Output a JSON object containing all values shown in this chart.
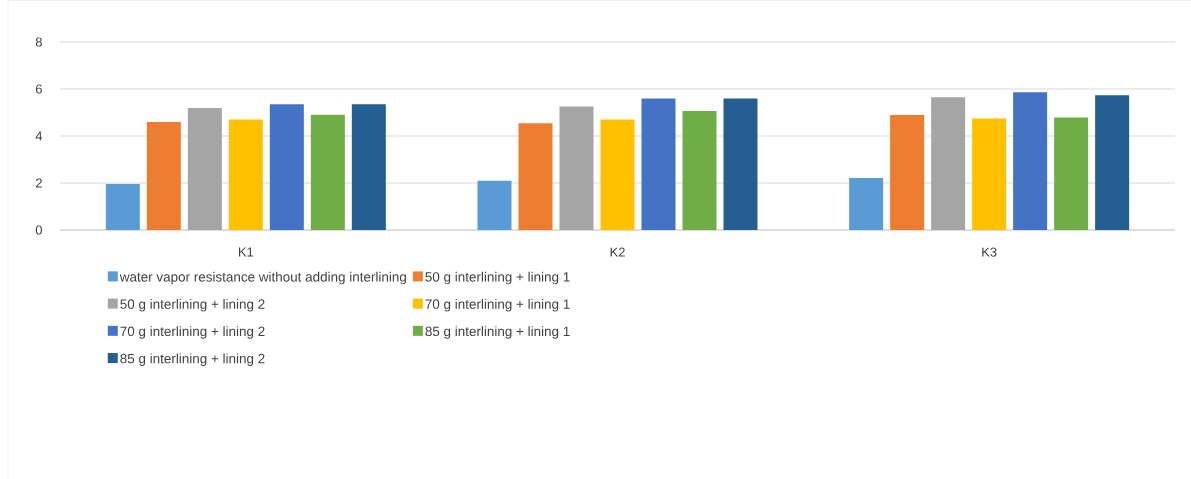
{
  "chart_data": {
    "type": "bar",
    "categories": [
      "K1",
      "K2",
      "K3"
    ],
    "series": [
      {
        "name": "water vapor resistance without adding interlining",
        "color": "#5b9bd5",
        "values": [
          1.96,
          2.09,
          2.21
        ]
      },
      {
        "name": "50 g interlining + lining 1",
        "color": "#ed7d31",
        "values": [
          4.6,
          4.54,
          4.89
        ]
      },
      {
        "name": "50 g interlining + lining 2",
        "color": "#a5a5a5",
        "values": [
          5.19,
          5.26,
          5.65
        ]
      },
      {
        "name": "70 g interlining + lining 1",
        "color": "#ffc000",
        "values": [
          4.7,
          4.7,
          4.74
        ]
      },
      {
        "name": "70 g interlining + lining 2",
        "color": "#4472c4",
        "values": [
          5.35,
          5.6,
          5.86
        ]
      },
      {
        "name": "85 g interlining + lining 1",
        "color": "#70ad47",
        "values": [
          4.9,
          5.06,
          4.79
        ]
      },
      {
        "name": "85 g interlining + lining 2",
        "color": "#255e91",
        "values": [
          5.35,
          5.6,
          5.73
        ]
      }
    ],
    "ylim": [
      0,
      8
    ],
    "yticks": [
      0,
      2,
      4,
      6,
      8
    ],
    "grid": "y",
    "legend": "bottom"
  }
}
